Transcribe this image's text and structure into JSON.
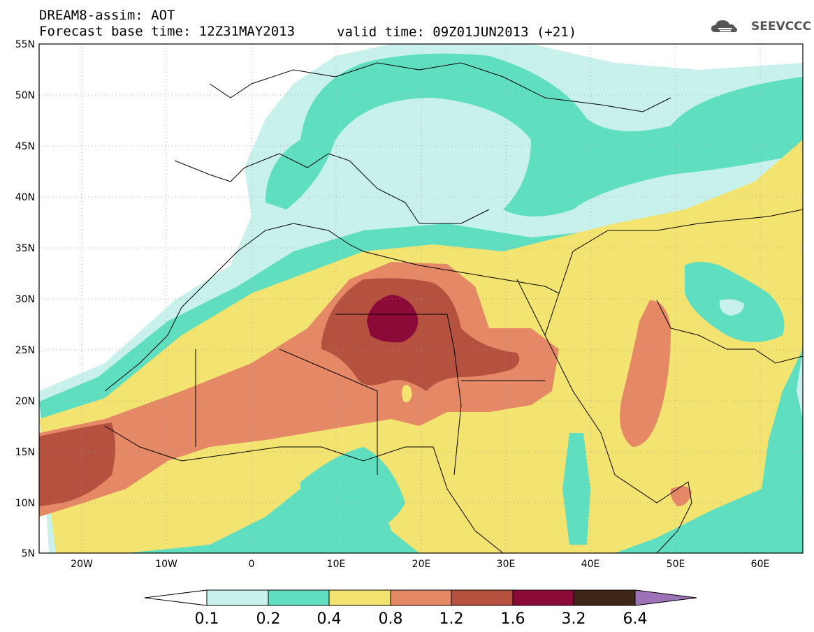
{
  "header": {
    "title": "DREAM8-assim: AOT",
    "base_time": "Forecast base time: 12Z31MAY2013",
    "valid_time": "valid time: 09Z01JUN2013 (+21)"
  },
  "logo": {
    "text": "SEEVCCC",
    "icon": "cloud-icon"
  },
  "map": {
    "lat_labels": [
      "55N",
      "50N",
      "45N",
      "40N",
      "35N",
      "30N",
      "25N",
      "20N",
      "15N",
      "10N",
      "5N"
    ],
    "lon_labels": [
      "20W",
      "10W",
      "0",
      "10E",
      "20E",
      "30E",
      "40E",
      "50E",
      "60E"
    ]
  },
  "colorbar": {
    "labels": [
      "0.1",
      "0.2",
      "0.4",
      "0.8",
      "1.2",
      "1.6",
      "3.2",
      "6.4"
    ],
    "colors": [
      "#ffffff",
      "#c7f1ea",
      "#5fdfc0",
      "#f3e370",
      "#e58866",
      "#b4513f",
      "#8b0a38",
      "#3f2717",
      "#9b73b6"
    ]
  }
}
